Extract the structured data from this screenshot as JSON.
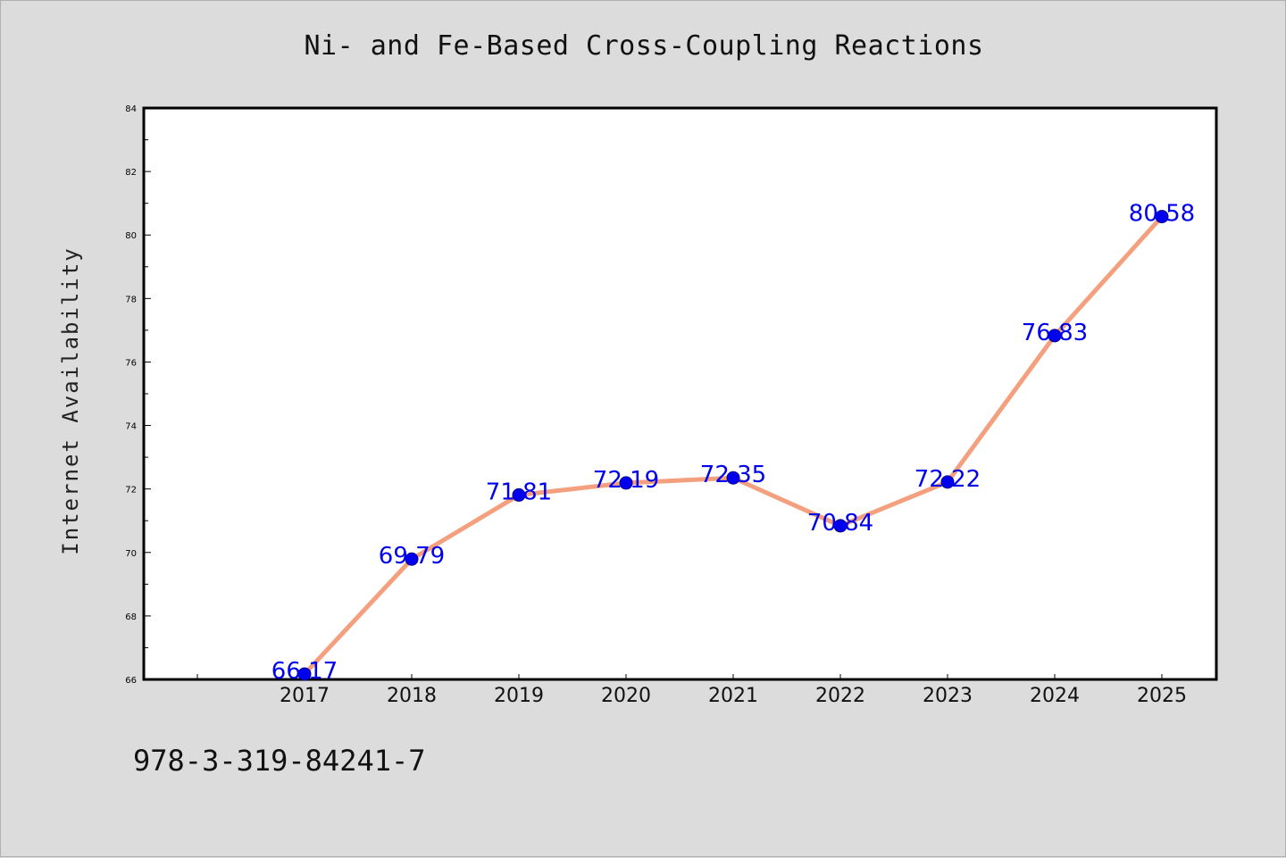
{
  "title": "Ni- and Fe-Based Cross-Coupling Reactions",
  "footer_code": "978-3-319-84241-7",
  "colors": {
    "line": "#f4a07e",
    "marker": "#0000ee",
    "label": "#0000ee",
    "plot_bg": "#ffffff",
    "page_bg": "#dcdcdc"
  },
  "chart_data": {
    "type": "line",
    "title": "Ni- and Fe-Based Cross-Coupling Reactions",
    "xlabel": "",
    "ylabel": "Internet Availability",
    "categories": [
      "2017",
      "2018",
      "2019",
      "2020",
      "2021",
      "2022",
      "2023",
      "2024",
      "2025"
    ],
    "values": [
      66.17,
      69.79,
      71.81,
      72.19,
      72.35,
      70.84,
      72.22,
      76.83,
      80.58
    ],
    "value_labels": [
      "66.17",
      "69.79",
      "71.81",
      "72.19",
      "72.35",
      "70.84",
      "72.22",
      "76.83",
      "80.58"
    ],
    "ylim": [
      66,
      84
    ],
    "y_ticks": [
      66,
      68,
      70,
      72,
      74,
      76,
      78,
      80,
      82,
      84
    ],
    "grid": false,
    "legend": "none"
  }
}
